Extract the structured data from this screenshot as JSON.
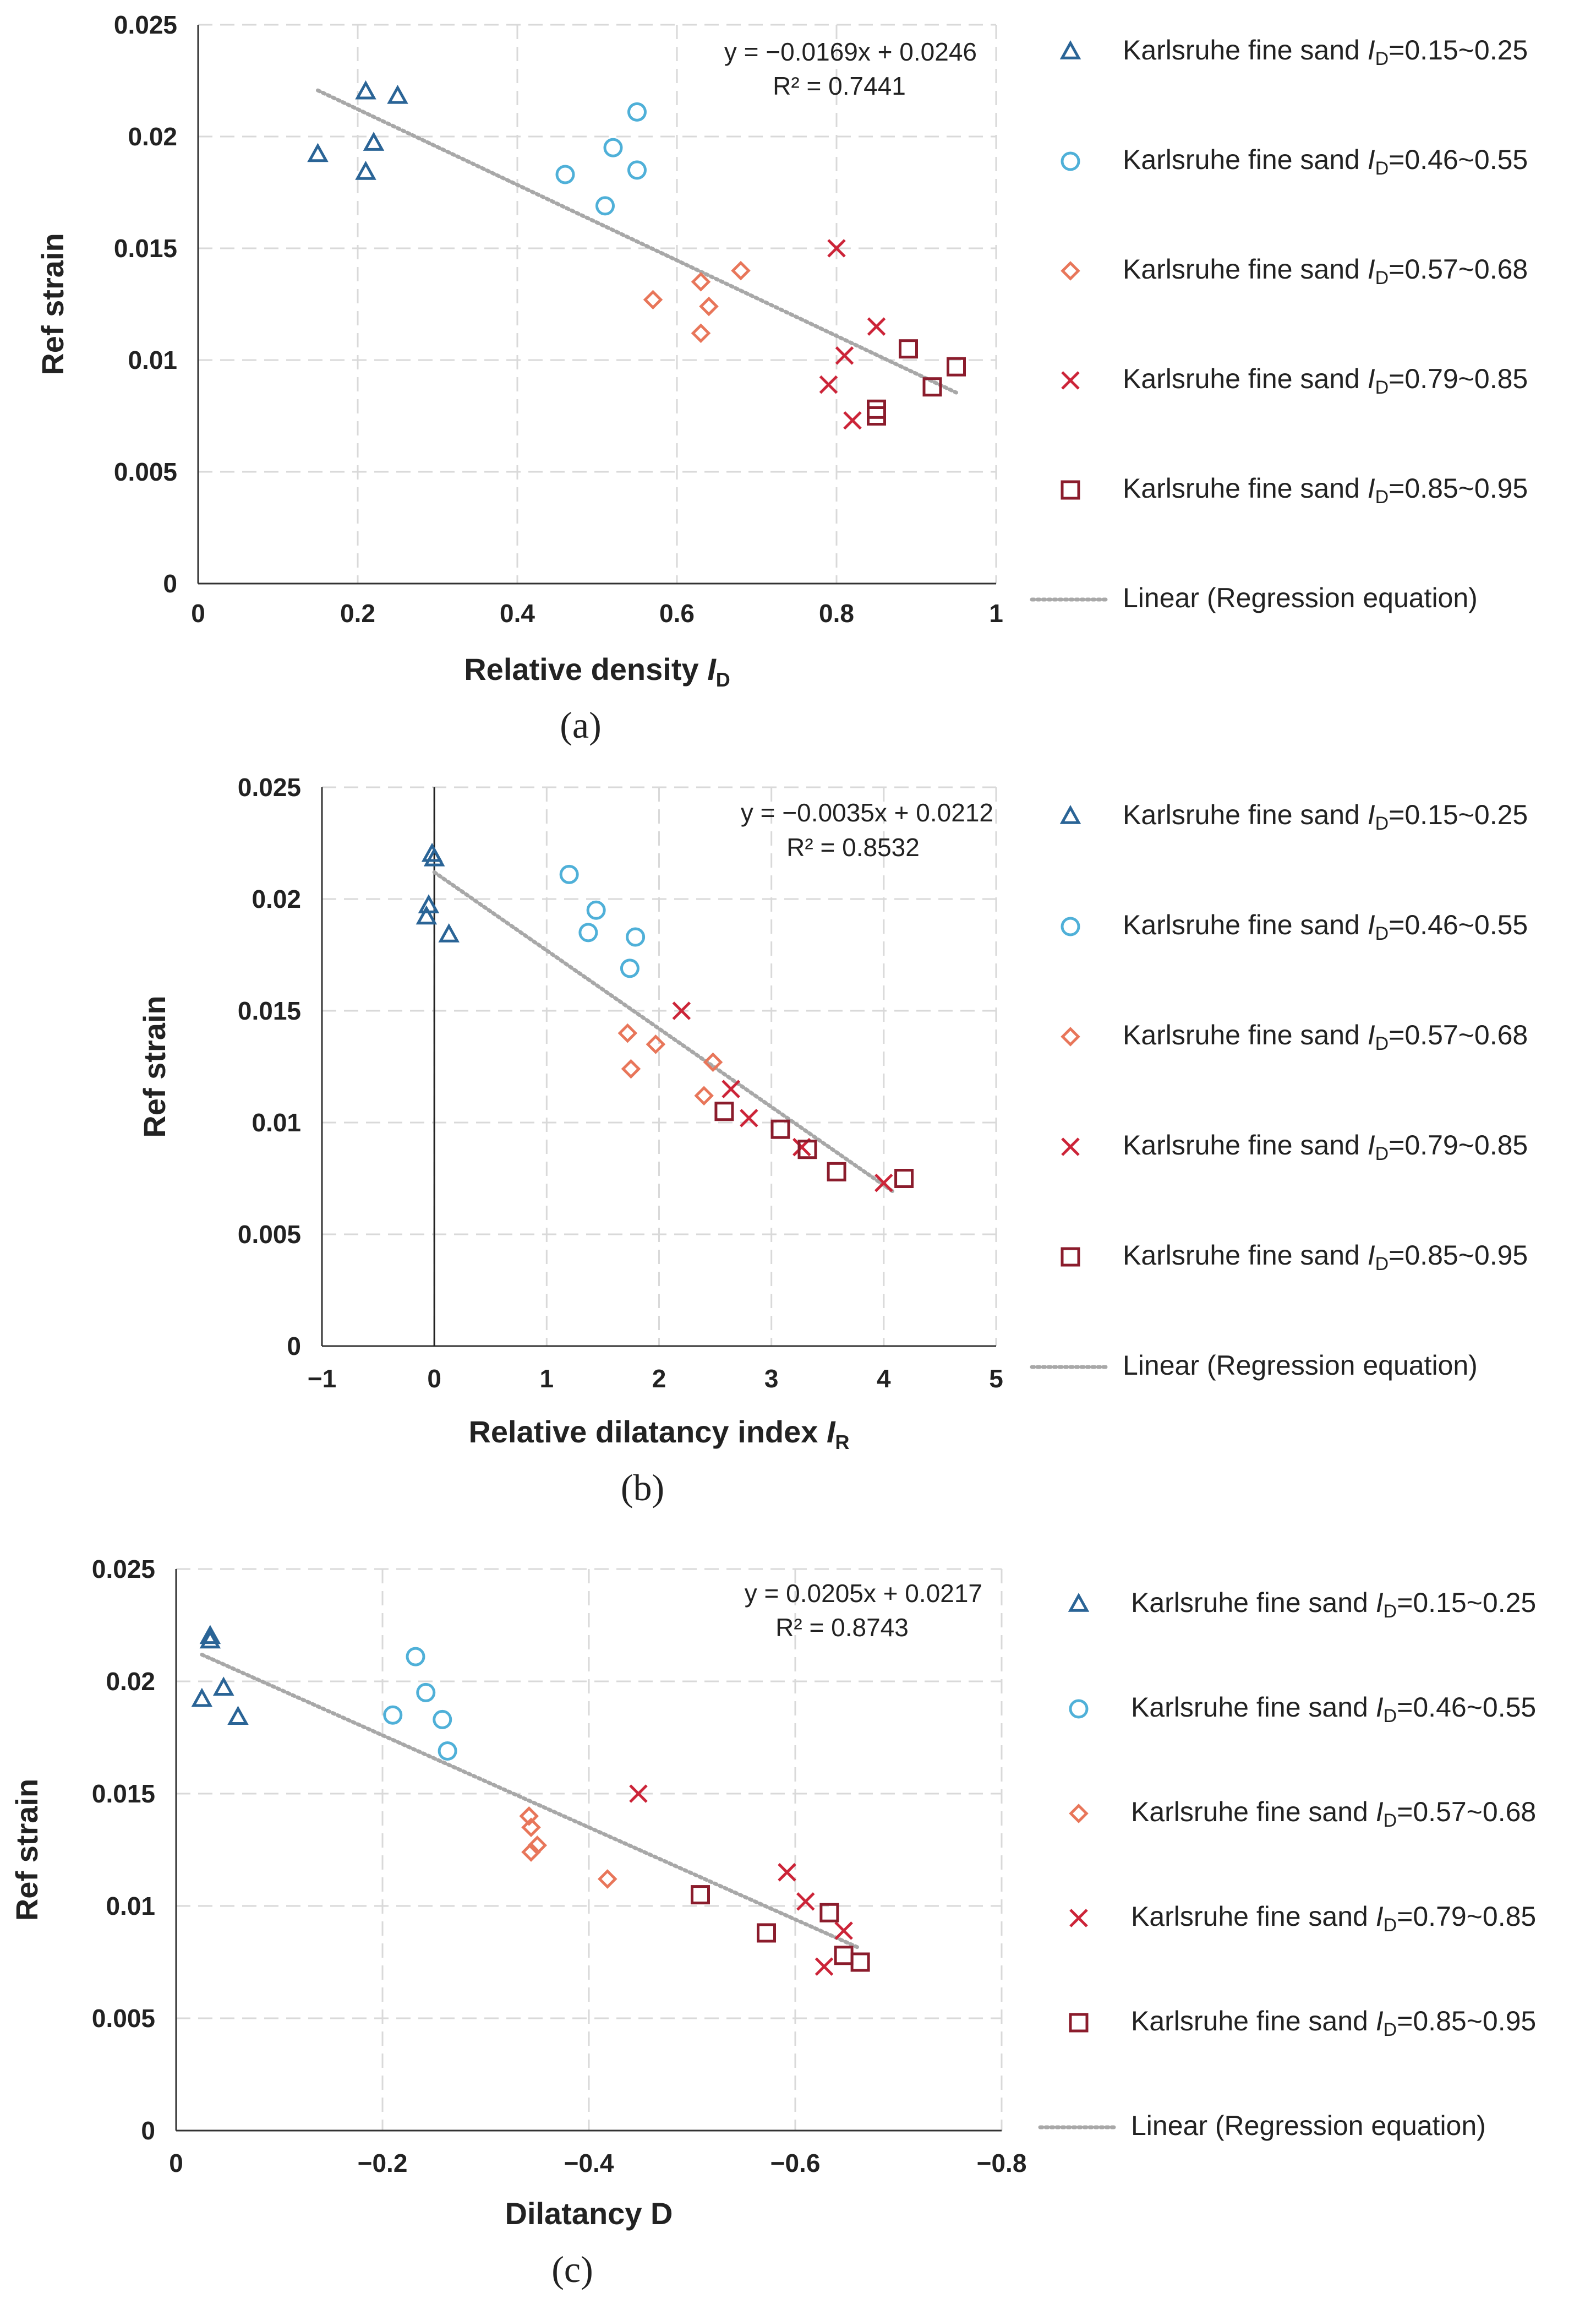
{
  "colors": {
    "s1": "#2a6496",
    "s2": "#4fb0d8",
    "s3": "#e8765a",
    "s4": "#cc2438",
    "s5": "#8b1c2c",
    "trend": "#a8a8a8",
    "grid": "#d9d9d9"
  },
  "legend": {
    "prefix": "Karlsruhe fine sand ",
    "ivar": "I",
    "isub": "D",
    "ranges": [
      "=0.15~0.25",
      "=0.46~0.55",
      "=0.57~0.68",
      "=0.79~0.85",
      "=0.85~0.95"
    ],
    "trend_label": "Linear (Regression equation)"
  },
  "chart_data": [
    {
      "id": "a",
      "type": "scatter",
      "caption": "(a)",
      "xlabel": "Relative density ",
      "xlabel_var": "I",
      "xlabel_sub": "D",
      "ylabel": "Ref strain",
      "xlim": [
        0,
        1
      ],
      "ylim": [
        0,
        0.025
      ],
      "xticks": [
        0,
        0.2,
        0.4,
        0.6,
        0.8,
        1
      ],
      "xtick_labels": [
        "0",
        "0.2",
        "0.4",
        "0.6",
        "0.8",
        "1"
      ],
      "yticks": [
        0,
        0.005,
        0.01,
        0.015,
        0.02,
        0.025
      ],
      "ytick_labels": [
        "0",
        "0.005",
        "0.01",
        "0.015",
        "0.02",
        "0.025"
      ],
      "zero_axis_x": null,
      "equation": "y = −0.0169x + 0.0246",
      "r2": "R² = 0.7441",
      "trendline": {
        "x": [
          0.15,
          0.95
        ]
      },
      "series": [
        {
          "name": "Karlsruhe fine sand ID=0.15~0.25",
          "marker": "triangle",
          "x": [
            0.15,
            0.21,
            0.21,
            0.22,
            0.25
          ],
          "y": [
            0.0192,
            0.022,
            0.0184,
            0.0197,
            0.0218
          ]
        },
        {
          "name": "Karlsruhe fine sand ID=0.46~0.55",
          "marker": "circle",
          "x": [
            0.46,
            0.51,
            0.52,
            0.55,
            0.55
          ],
          "y": [
            0.0183,
            0.0169,
            0.0195,
            0.0211,
            0.0185
          ]
        },
        {
          "name": "Karlsruhe fine sand ID=0.57~0.68",
          "marker": "diamond",
          "x": [
            0.57,
            0.63,
            0.63,
            0.64,
            0.68
          ],
          "y": [
            0.0127,
            0.0135,
            0.0112,
            0.0124,
            0.014
          ]
        },
        {
          "name": "Karlsruhe fine sand ID=0.79~0.85",
          "marker": "x",
          "x": [
            0.79,
            0.8,
            0.81,
            0.82,
            0.85
          ],
          "y": [
            0.0089,
            0.015,
            0.0102,
            0.0073,
            0.0115
          ]
        },
        {
          "name": "Karlsruhe fine sand ID=0.85~0.95",
          "marker": "square",
          "x": [
            0.85,
            0.85,
            0.89,
            0.92,
            0.95
          ],
          "y": [
            0.0078,
            0.0075,
            0.0105,
            0.0088,
            0.0097
          ]
        }
      ]
    },
    {
      "id": "b",
      "type": "scatter",
      "caption": "(b)",
      "xlabel": "Relative dilatancy index ",
      "xlabel_var": "I",
      "xlabel_sub": "R",
      "ylabel": "Ref strain",
      "xlim": [
        -1,
        5
      ],
      "ylim": [
        0,
        0.025
      ],
      "xticks": [
        -1,
        0,
        1,
        2,
        3,
        4,
        5
      ],
      "xtick_labels": [
        "−1",
        "0",
        "1",
        "2",
        "3",
        "4",
        "5"
      ],
      "yticks": [
        0,
        0.005,
        0.01,
        0.015,
        0.02,
        0.025
      ],
      "ytick_labels": [
        "0",
        "0.005",
        "0.01",
        "0.015",
        "0.02",
        "0.025"
      ],
      "zero_axis_x": 0,
      "equation": "y = −0.0035x + 0.0212",
      "r2": "R² = 0.8532",
      "trendline": {
        "x": [
          0,
          4.1
        ]
      },
      "series": [
        {
          "name": "Karlsruhe fine sand ID=0.15~0.25",
          "marker": "triangle",
          "x": [
            -0.07,
            -0.05,
            -0.02,
            0.0,
            0.13
          ],
          "y": [
            0.0192,
            0.0197,
            0.022,
            0.0218,
            0.0184
          ]
        },
        {
          "name": "Karlsruhe fine sand ID=0.46~0.55",
          "marker": "circle",
          "x": [
            1.2,
            1.37,
            1.44,
            1.74,
            1.79
          ],
          "y": [
            0.0211,
            0.0185,
            0.0195,
            0.0169,
            0.0183
          ]
        },
        {
          "name": "Karlsruhe fine sand ID=0.57~0.68",
          "marker": "diamond",
          "x": [
            1.72,
            1.75,
            1.97,
            2.4,
            2.48
          ],
          "y": [
            0.014,
            0.0124,
            0.0135,
            0.0112,
            0.0127
          ]
        },
        {
          "name": "Karlsruhe fine sand ID=0.79~0.85",
          "marker": "x",
          "x": [
            2.2,
            2.64,
            2.8,
            3.27,
            4.0
          ],
          "y": [
            0.015,
            0.0115,
            0.0102,
            0.0089,
            0.0073
          ]
        },
        {
          "name": "Karlsruhe fine sand ID=0.85~0.95",
          "marker": "square",
          "x": [
            2.58,
            3.08,
            3.32,
            3.58,
            4.18
          ],
          "y": [
            0.0105,
            0.0097,
            0.0088,
            0.0078,
            0.0075
          ]
        }
      ]
    },
    {
      "id": "c",
      "type": "scatter",
      "caption": "(c)",
      "xlabel": "Dilatancy D",
      "xlabel_var": "",
      "xlabel_sub": "",
      "ylabel": "Ref strain",
      "xlim": [
        0,
        -0.8
      ],
      "ylim": [
        0,
        0.025
      ],
      "xticks": [
        0,
        -0.2,
        -0.4,
        -0.6,
        -0.8
      ],
      "xtick_labels": [
        "0",
        "−0.2",
        "−0.4",
        "−0.6",
        "−0.8"
      ],
      "yticks": [
        0,
        0.005,
        0.01,
        0.015,
        0.02,
        0.025
      ],
      "ytick_labels": [
        "0",
        "0.005",
        "0.01",
        "0.015",
        "0.02",
        "0.025"
      ],
      "zero_axis_x": null,
      "equation": "y = 0.0205x + 0.0217",
      "r2": "R² = 0.8743",
      "trendline": {
        "x": [
          -0.025,
          -0.66
        ]
      },
      "series": [
        {
          "name": "Karlsruhe fine sand ID=0.15~0.25",
          "marker": "triangle",
          "x": [
            -0.025,
            -0.033,
            -0.033,
            -0.046,
            -0.06
          ],
          "y": [
            0.0192,
            0.0218,
            0.022,
            0.0197,
            0.0184
          ]
        },
        {
          "name": "Karlsruhe fine sand ID=0.46~0.55",
          "marker": "circle",
          "x": [
            -0.21,
            -0.232,
            -0.242,
            -0.258,
            -0.263
          ],
          "y": [
            0.0185,
            0.0211,
            0.0195,
            0.0183,
            0.0169
          ]
        },
        {
          "name": "Karlsruhe fine sand ID=0.57~0.68",
          "marker": "diamond",
          "x": [
            -0.342,
            -0.344,
            -0.344,
            -0.35,
            -0.418
          ],
          "y": [
            0.014,
            0.0124,
            0.0135,
            0.0127,
            0.0112
          ]
        },
        {
          "name": "Karlsruhe fine sand ID=0.79~0.85",
          "marker": "x",
          "x": [
            -0.448,
            -0.592,
            -0.61,
            -0.628,
            -0.647
          ],
          "y": [
            0.015,
            0.0115,
            0.0102,
            0.0073,
            0.0089
          ]
        },
        {
          "name": "Karlsruhe fine sand ID=0.85~0.95",
          "marker": "square",
          "x": [
            -0.508,
            -0.572,
            -0.633,
            -0.647,
            -0.663
          ],
          "y": [
            0.0105,
            0.0088,
            0.0097,
            0.0078,
            0.0075
          ]
        }
      ]
    }
  ]
}
